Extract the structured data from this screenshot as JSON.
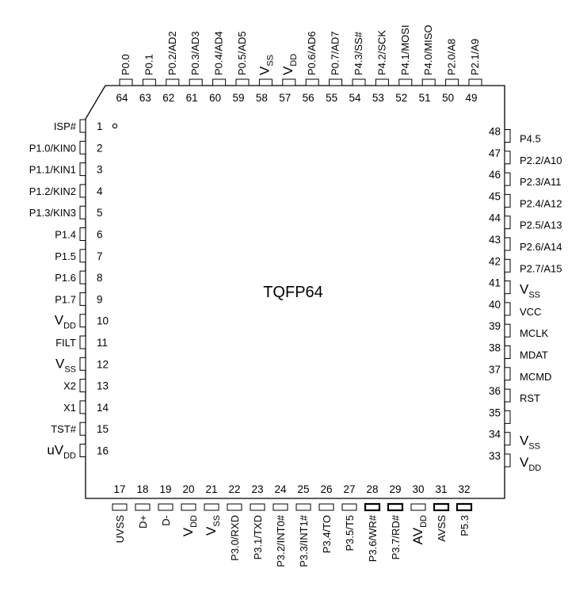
{
  "package": {
    "title": "TQFP64",
    "pin1_marker": "pin-1-dot"
  },
  "pins": {
    "left": [
      {
        "num": "1",
        "label": "ISP#"
      },
      {
        "num": "2",
        "label": "P1.0/KIN0"
      },
      {
        "num": "3",
        "label": "P1.1/KIN1"
      },
      {
        "num": "4",
        "label": "P1.2/KIN2"
      },
      {
        "num": "5",
        "label": "P1.3/KIN3"
      },
      {
        "num": "6",
        "label": "P1.4"
      },
      {
        "num": "7",
        "label": "P1.5"
      },
      {
        "num": "8",
        "label": "P1.6"
      },
      {
        "num": "9",
        "label": "P1.7"
      },
      {
        "num": "10",
        "label": "V",
        "sub": "DD"
      },
      {
        "num": "11",
        "label": "FILT"
      },
      {
        "num": "12",
        "label": "V",
        "sub": "SS"
      },
      {
        "num": "13",
        "label": "X2"
      },
      {
        "num": "14",
        "label": "X1"
      },
      {
        "num": "15",
        "label": "TST#"
      },
      {
        "num": "16",
        "label": "uV",
        "sub": "DD"
      }
    ],
    "bottom": [
      {
        "num": "17",
        "label": "UVSS"
      },
      {
        "num": "18",
        "label": "D+"
      },
      {
        "num": "19",
        "label": "D-"
      },
      {
        "num": "20",
        "label": "V",
        "sub": "DD"
      },
      {
        "num": "21",
        "label": "V",
        "sub": "SS"
      },
      {
        "num": "22",
        "label": "P3.0/RXD"
      },
      {
        "num": "23",
        "label": "P3.1/TXD"
      },
      {
        "num": "24",
        "label": "P3.2/INT0#"
      },
      {
        "num": "25",
        "label": "P3.3/INT1#"
      },
      {
        "num": "26",
        "label": "P3.4/TO"
      },
      {
        "num": "27",
        "label": "P3.5/T5"
      },
      {
        "num": "28",
        "label": "P3.6/WR#"
      },
      {
        "num": "29",
        "label": "P3.7/RD#"
      },
      {
        "num": "30",
        "label": "AV",
        "sub": "DD"
      },
      {
        "num": "31",
        "label": "AVSS"
      },
      {
        "num": "32",
        "label": "P5.3"
      }
    ],
    "right": [
      {
        "num": "33",
        "label": "V",
        "sub": "DD"
      },
      {
        "num": "34",
        "label": "V",
        "sub": "SS"
      },
      {
        "num": "35",
        "label": ""
      },
      {
        "num": "36",
        "label": "RST"
      },
      {
        "num": "37",
        "label": "MCMD"
      },
      {
        "num": "38",
        "label": "MDAT"
      },
      {
        "num": "39",
        "label": "MCLK"
      },
      {
        "num": "40",
        "label": "VCC"
      },
      {
        "num": "41",
        "label": "V",
        "sub": "SS"
      },
      {
        "num": "42",
        "label": "P2.7/A15"
      },
      {
        "num": "43",
        "label": "P2.6/A14"
      },
      {
        "num": "44",
        "label": "P2.5/A13"
      },
      {
        "num": "45",
        "label": "P2.4/A12"
      },
      {
        "num": "46",
        "label": "P2.3/A11"
      },
      {
        "num": "47",
        "label": "P2.2/A10"
      },
      {
        "num": "48",
        "label": "P4.5"
      }
    ],
    "top": [
      {
        "num": "49",
        "label": "P2.1/A9"
      },
      {
        "num": "50",
        "label": "P2.0/A8"
      },
      {
        "num": "51",
        "label": "P4.0/MISO"
      },
      {
        "num": "52",
        "label": "P4.1/MOSI"
      },
      {
        "num": "53",
        "label": "P4.2/SCK"
      },
      {
        "num": "54",
        "label": "P4.3/SS#"
      },
      {
        "num": "55",
        "label": "P0.7/AD7"
      },
      {
        "num": "56",
        "label": "P0.6/AD6"
      },
      {
        "num": "57",
        "label": "V",
        "sub": "DD"
      },
      {
        "num": "58",
        "label": "V",
        "sub": "SS"
      },
      {
        "num": "59",
        "label": "P0.5/AD5"
      },
      {
        "num": "60",
        "label": "P0.4/AD4"
      },
      {
        "num": "61",
        "label": "P0.3/AD3"
      },
      {
        "num": "62",
        "label": "P0.2/AD2"
      },
      {
        "num": "63",
        "label": "P0.1"
      },
      {
        "num": "64",
        "label": "P0.0"
      }
    ]
  }
}
